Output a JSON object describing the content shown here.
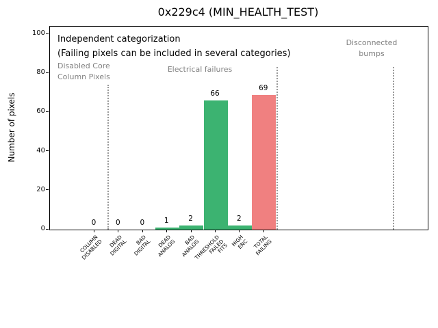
{
  "chart_data": {
    "type": "bar",
    "title": "0x229c4 (MIN_HEALTH_TEST)",
    "ylabel": "Number of pixels",
    "xlabel": "",
    "ylim": [
      0,
      104
    ],
    "yticks": [
      0,
      20,
      40,
      60,
      80,
      100
    ],
    "grid": false,
    "legend": "none",
    "categories": [
      [
        "COLUMN",
        "DISABLED"
      ],
      [
        "DEAD",
        "DIGITAL"
      ],
      [
        "BAD",
        "DIGITAL"
      ],
      [
        "DEAD",
        "ANALOG"
      ],
      [
        "BAD",
        "ANALOG"
      ],
      [
        "THRESHOLD",
        "FAILED",
        "FITS"
      ],
      [
        "HIGH",
        "ENC"
      ],
      [
        "TOTAL",
        "FAILING"
      ]
    ],
    "values": [
      0,
      0,
      0,
      1,
      2,
      66,
      2,
      69
    ],
    "bar_colors": [
      "#3cb371",
      "#3cb371",
      "#3cb371",
      "#3cb371",
      "#3cb371",
      "#3cb371",
      "#3cb371",
      "#f08080"
    ],
    "value_labels": [
      "0",
      "0",
      "0",
      "1",
      "2",
      "66",
      "2",
      "69"
    ],
    "annotations": {
      "note_line1": "Independent categorization",
      "note_line2": "(Failing pixels can be included in several categories)",
      "region_disabled_l1": "Disabled Core",
      "region_disabled_l2": "Column Pixels",
      "region_electrical": "Electrical failures",
      "region_disconnected_l1": "Disconnected",
      "region_disconnected_l2": "bumps"
    },
    "separator_count": 3
  },
  "colors": {
    "bar_green": "#3cb371",
    "bar_red": "#f08080",
    "annotation_gray": "#818181",
    "separator_gray": "#999999",
    "axis_black": "#000000"
  }
}
